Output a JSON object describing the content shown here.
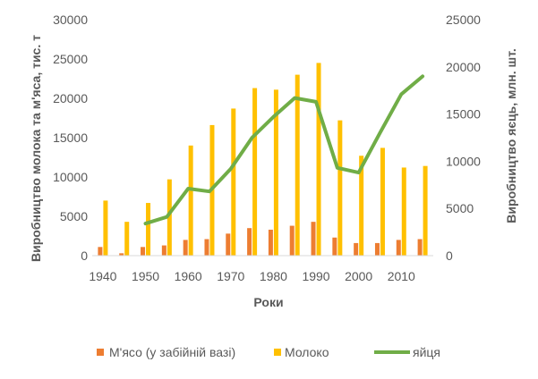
{
  "chart_data": {
    "type": "bar",
    "categories": [
      "1940",
      "1945",
      "1950",
      "1955",
      "1960",
      "1965",
      "1970",
      "1975",
      "1980",
      "1985",
      "1990",
      "1995",
      "2000",
      "2005",
      "2010",
      "2015"
    ],
    "x_tick_labels": [
      "1940",
      "1950",
      "1960",
      "1970",
      "1980",
      "1990",
      "2000",
      "2010"
    ],
    "xlabel": "Роки",
    "ylabel_left": "Виробництво молока та м'яса, тис. т",
    "ylabel_right": "Виробництво яєць, млн. шт.",
    "ylim_left": [
      0,
      30000
    ],
    "ylim_right": [
      0,
      25000
    ],
    "y_ticks_left": [
      "0",
      "5000",
      "10000",
      "15000",
      "20000",
      "25000",
      "30000"
    ],
    "y_ticks_right": [
      "0",
      "5000",
      "10000",
      "15000",
      "20000",
      "25000"
    ],
    "grid": false,
    "legend_position": "bottom",
    "series": [
      {
        "name": "М'ясо (у забійній вазі)",
        "kind": "bar",
        "axis": "left",
        "color": "#ED7D31",
        "values": [
          1100,
          300,
          1100,
          1300,
          2000,
          2100,
          2800,
          3500,
          3300,
          3800,
          4300,
          2300,
          1600,
          1600,
          2000,
          2100
        ]
      },
      {
        "name": "Молоко",
        "kind": "bar",
        "axis": "left",
        "color": "#FFC000",
        "values": [
          7000,
          4300,
          6700,
          9700,
          14000,
          16600,
          18700,
          21300,
          21100,
          23000,
          24500,
          17200,
          12700,
          13700,
          11200,
          11400
        ]
      },
      {
        "name": "яйця",
        "kind": "line",
        "axis": "right",
        "color": "#70AD47",
        "values": [
          null,
          null,
          3400,
          4100,
          7100,
          6800,
          9200,
          12500,
          14700,
          16700,
          16300,
          9300,
          8800,
          13000,
          17100,
          19000
        ]
      }
    ]
  }
}
